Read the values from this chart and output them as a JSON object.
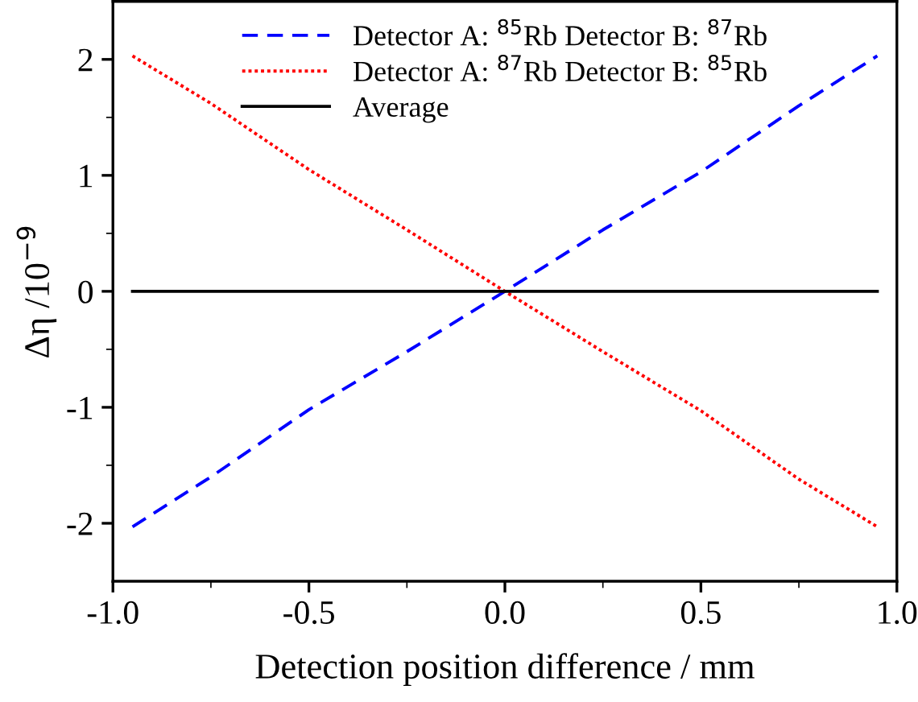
{
  "chart_data": {
    "type": "line",
    "xlabel": "Detection position difference / mm",
    "ylabel": "Δη /10$^{−9}$",
    "xlim": [
      -1.0,
      1.0
    ],
    "xticks": [
      {
        "value": -1.0,
        "label": "-1.0"
      },
      {
        "value": -0.5,
        "label": "-0.5"
      },
      {
        "value": 0.0,
        "label": "0.0"
      },
      {
        "value": 0.5,
        "label": "0.5"
      },
      {
        "value": 1.0,
        "label": "1.0"
      }
    ],
    "ylim": [
      -2.5,
      2.5
    ],
    "yticks": [
      -2,
      -1,
      0,
      1,
      2
    ],
    "grid": false,
    "legend": "top",
    "marker": "none",
    "series": [
      {
        "name": "Detector A: $^{85}$Rb Detector B: $^{87}$Rb",
        "color": "#0000ff",
        "line_style": "dashed",
        "x": [
          -0.95,
          -0.75,
          -0.5,
          -0.25,
          0.0,
          0.25,
          0.5,
          0.75,
          0.95
        ],
        "values": [
          -2.03,
          -1.6,
          -1.02,
          -0.52,
          0.0,
          0.53,
          1.03,
          1.6,
          2.03
        ]
      },
      {
        "name": "Detector A: $^{87}$Rb Detector B: $^{85}$Rb",
        "color": "#ff0000",
        "line_style": "dotted",
        "x": [
          -0.95,
          -0.75,
          -0.5,
          -0.25,
          0.0,
          0.25,
          0.5,
          0.75,
          0.95
        ],
        "values": [
          2.03,
          1.62,
          1.05,
          0.53,
          0.0,
          -0.52,
          -1.03,
          -1.62,
          -2.03
        ]
      },
      {
        "name": "Average",
        "color": "#000000",
        "line_style": "solid",
        "x": [
          -0.95,
          0.95
        ],
        "values": [
          0,
          0
        ]
      }
    ]
  }
}
